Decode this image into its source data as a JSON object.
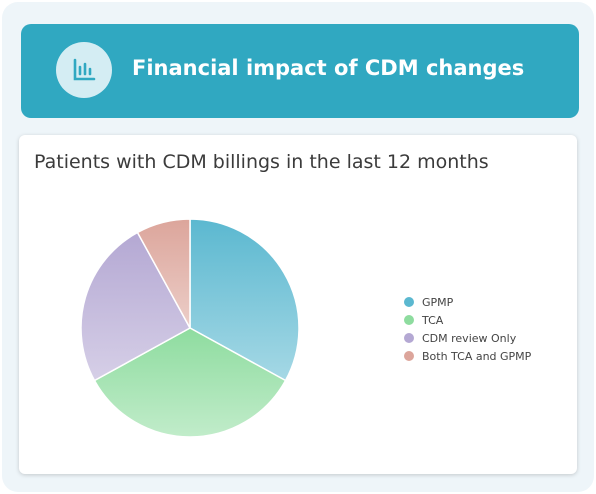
{
  "header": {
    "title": "Financial impact of CDM changes",
    "icon": "bar-chart-icon"
  },
  "colors": {
    "header_bg": "#30a8c1",
    "gpmp": "#5bb8d0",
    "tca": "#8edc9f",
    "cdm_review_only": "#b4a8d3",
    "both": "#dca59b"
  },
  "chart_data": {
    "type": "pie",
    "title": "Patients with CDM billings in the last 12 months",
    "legend_position": "right",
    "slices": [
      {
        "label": "GPMP",
        "value": 33,
        "color": "#5bb8d0"
      },
      {
        "label": "TCA",
        "value": 34,
        "color": "#8edc9f"
      },
      {
        "label": "CDM review Only",
        "value": 25,
        "color": "#b4a8d3"
      },
      {
        "label": "Both TCA and GPMP",
        "value": 8,
        "color": "#dca59b"
      }
    ]
  }
}
